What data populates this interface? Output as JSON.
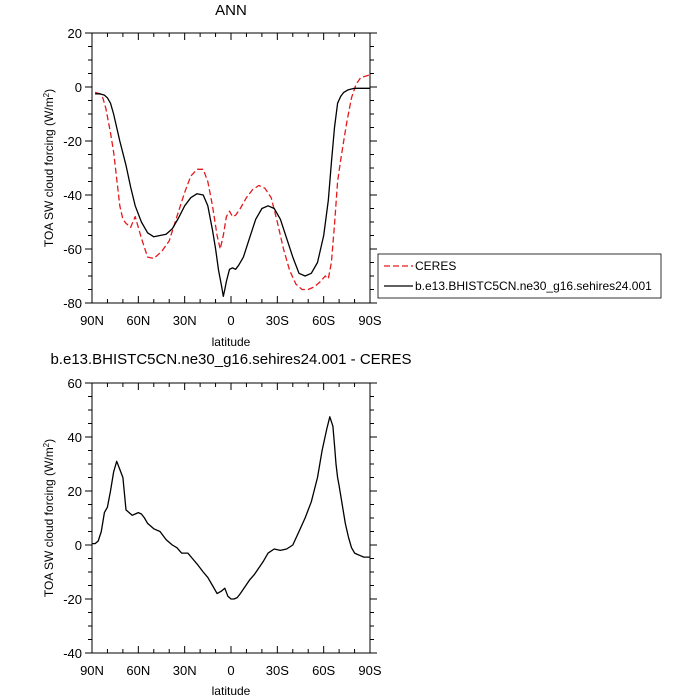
{
  "chart_data": [
    {
      "type": "line",
      "title": "ANN",
      "xlabel": "latitude",
      "ylabel": "TOA SW cloud forcing (W/m",
      "ylabel_sup": "2",
      "ylabel_end": ")",
      "xlim": [
        90,
        -90
      ],
      "ylim": [
        -80,
        20
      ],
      "xticks": [
        90,
        60,
        30,
        0,
        -30,
        -60,
        -90
      ],
      "xtick_labels": [
        "90N",
        "60N",
        "30N",
        "0",
        "30S",
        "60S",
        "90S"
      ],
      "yticks": [
        20,
        0,
        -20,
        -40,
        -60,
        -80
      ],
      "ytick_labels": [
        "20",
        "0",
        "-20",
        "-40",
        "-60",
        "-80"
      ],
      "legend_position": "right",
      "series": [
        {
          "name": "CERES",
          "color": "#e41a1c",
          "style": "dashed",
          "x": [
            88,
            85,
            83,
            81,
            78,
            76,
            74,
            72,
            70,
            68,
            65,
            62,
            58,
            54,
            50,
            45,
            40,
            35,
            30,
            26,
            22,
            18,
            15,
            12,
            9,
            7,
            5,
            3,
            1,
            -1,
            -3,
            -6,
            -10,
            -14,
            -18,
            -22,
            -26,
            -30,
            -34,
            -38,
            -42,
            -46,
            -50,
            -54,
            -58,
            -61,
            -63,
            -65,
            -67,
            -69,
            -71,
            -73,
            -75,
            -78,
            -81,
            -84,
            -87,
            -90
          ],
          "y": [
            -2,
            -2.5,
            -4,
            -8,
            -17,
            -24,
            -34,
            -44,
            -49,
            -50.5,
            -52,
            -48,
            -56,
            -63,
            -63.5,
            -61,
            -57,
            -48,
            -39,
            -33,
            -30.5,
            -30.5,
            -35,
            -44,
            -55,
            -60,
            -55,
            -48,
            -46,
            -48,
            -47.5,
            -45,
            -41,
            -38,
            -36.5,
            -37.5,
            -41,
            -50,
            -60,
            -68,
            -73,
            -75,
            -75,
            -74,
            -72,
            -70,
            -71,
            -65,
            -51,
            -35,
            -27,
            -20,
            -13,
            -4,
            1,
            3.5,
            4,
            4.5
          ]
        },
        {
          "name": "b.e13.BHISTC5CN.ne30_g16.sehires24.001",
          "color": "#000000",
          "style": "solid",
          "x": [
            88,
            85,
            82,
            80,
            78,
            76,
            74,
            72,
            68,
            65,
            62,
            58,
            54,
            50,
            46,
            42,
            38,
            34,
            30,
            26,
            22,
            18,
            15,
            12,
            10,
            8,
            6,
            5,
            4,
            3,
            1,
            -1,
            -3,
            -5,
            -8,
            -12,
            -16,
            -20,
            -24,
            -28,
            -32,
            -36,
            -40,
            -44,
            -48,
            -52,
            -56,
            -60,
            -63,
            -65,
            -67,
            -69,
            -71,
            -73,
            -76,
            -80,
            -85,
            -90
          ],
          "y": [
            -2.5,
            -2.5,
            -3,
            -4,
            -6,
            -10,
            -15,
            -20,
            -29,
            -37,
            -44,
            -50,
            -54,
            -55.5,
            -55,
            -54.5,
            -52.5,
            -48.5,
            -44,
            -41,
            -39.5,
            -40,
            -44,
            -53,
            -60,
            -68,
            -74,
            -77.5,
            -75,
            -72,
            -67.5,
            -67,
            -67.5,
            -66,
            -63,
            -56,
            -49,
            -45,
            -44,
            -45,
            -49,
            -56,
            -63,
            -69,
            -70,
            -69,
            -65,
            -55,
            -42,
            -28,
            -15,
            -6,
            -3.5,
            -2,
            -1,
            -0.5,
            -0.5,
            -0.5
          ]
        }
      ]
    },
    {
      "type": "line",
      "title": "b.e13.BHISTC5CN.ne30_g16.sehires24.001 - CERES",
      "xlabel": "latitude",
      "ylabel": "TOA SW cloud forcing (W/m",
      "ylabel_sup": "2",
      "ylabel_end": ")",
      "xlim": [
        90,
        -90
      ],
      "ylim": [
        -40,
        60
      ],
      "xticks": [
        90,
        60,
        30,
        0,
        -30,
        -60,
        -90
      ],
      "xtick_labels": [
        "90N",
        "60N",
        "30N",
        "0",
        "30S",
        "60S",
        "90S"
      ],
      "yticks": [
        60,
        40,
        20,
        0,
        -20,
        -40
      ],
      "ytick_labels": [
        "60",
        "40",
        "20",
        "0",
        "-20",
        "-40"
      ],
      "series": [
        {
          "color": "#000000",
          "style": "solid",
          "x": [
            90,
            88,
            86,
            84,
            82,
            80,
            78,
            76,
            74,
            72,
            70,
            68,
            66,
            64,
            62,
            60,
            58,
            56,
            54,
            50,
            46,
            42,
            38,
            35,
            32,
            28,
            25,
            22,
            18,
            15,
            12,
            9,
            6,
            4,
            2,
            0,
            -2,
            -4,
            -6,
            -9,
            -12,
            -15,
            -18,
            -21,
            -24,
            -28,
            -32,
            -36,
            -40,
            -44,
            -48,
            -52,
            -56,
            -59,
            -62,
            -64,
            -66,
            -67,
            -68,
            -69,
            -70,
            -72,
            -74,
            -76,
            -78,
            -80,
            -82,
            -84,
            -86,
            -88,
            -90
          ],
          "y": [
            0.5,
            0.5,
            1.5,
            5,
            12,
            14,
            20,
            27,
            31,
            28,
            25,
            13,
            12,
            11,
            11.5,
            12,
            11.5,
            10,
            8,
            6,
            5,
            2,
            0,
            -1,
            -3,
            -3,
            -5,
            -7,
            -10,
            -12,
            -15,
            -18,
            -17,
            -16,
            -19,
            -20,
            -20,
            -19.5,
            -18,
            -15.5,
            -13,
            -11,
            -8.5,
            -6,
            -3,
            -1.5,
            -2,
            -1.5,
            0,
            5,
            10,
            16,
            25,
            35,
            43,
            47.5,
            44,
            37,
            30,
            25,
            22,
            15,
            8,
            3,
            -1,
            -3,
            -3.5,
            -4,
            -4.5,
            -4.5,
            -4.5
          ]
        }
      ]
    }
  ]
}
